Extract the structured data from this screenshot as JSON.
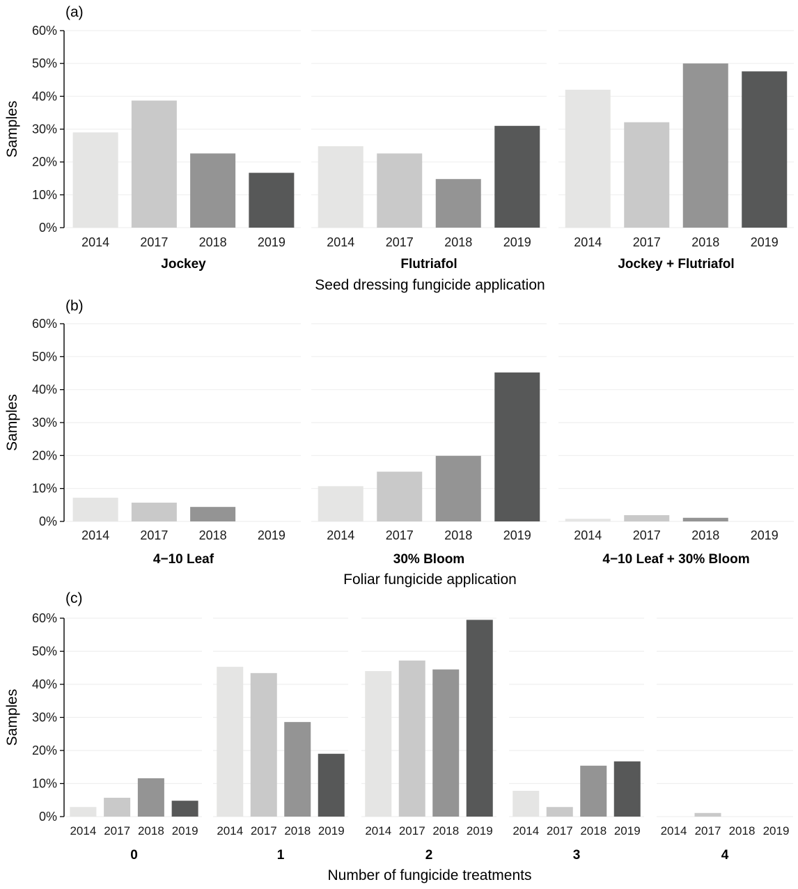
{
  "figure": {
    "category_colors": [
      "#e5e5e4",
      "#c9c9c9",
      "#949494",
      "#575858"
    ],
    "grid_color": "#efefef"
  },
  "chart_data": [
    {
      "type": "bar",
      "panel_tag": "(a)",
      "ylabel": "Samples",
      "xlabel": "Seed dressing fungicide application",
      "ylim": [
        0,
        60
      ],
      "yticks": [
        "0%",
        "10%",
        "20%",
        "30%",
        "40%",
        "50%",
        "60%"
      ],
      "grid": true,
      "categories": [
        "2014",
        "2017",
        "2018",
        "2019"
      ],
      "facets": [
        {
          "label": "Jockey",
          "values": [
            29,
            38.7,
            22.6,
            16.7
          ]
        },
        {
          "label": "Flutriafol",
          "values": [
            24.8,
            22.6,
            14.8,
            31
          ]
        },
        {
          "label": "Jockey + Flutriafol",
          "values": [
            42,
            32.1,
            50,
            47.6
          ]
        }
      ]
    },
    {
      "type": "bar",
      "panel_tag": "(b)",
      "ylabel": "Samples",
      "xlabel": "Foliar fungicide application",
      "ylim": [
        0,
        60
      ],
      "yticks": [
        "0%",
        "10%",
        "20%",
        "30%",
        "40%",
        "50%",
        "60%"
      ],
      "grid": true,
      "categories": [
        "2014",
        "2017",
        "2018",
        "2019"
      ],
      "facets": [
        {
          "label": "4−10 Leaf",
          "values": [
            7.2,
            5.7,
            4.4,
            0
          ]
        },
        {
          "label": "30% Bloom",
          "values": [
            10.7,
            15.1,
            19.9,
            45.2
          ]
        },
        {
          "label": "4−10 Leaf + 30% Bloom",
          "values": [
            0.8,
            1.9,
            1.1,
            0
          ]
        }
      ]
    },
    {
      "type": "bar",
      "panel_tag": "(c)",
      "ylabel": "Samples",
      "xlabel": "Number of fungicide treatments",
      "ylim": [
        0,
        60
      ],
      "yticks": [
        "0%",
        "10%",
        "20%",
        "30%",
        "40%",
        "50%",
        "60%"
      ],
      "grid": true,
      "categories": [
        "2014",
        "2017",
        "2018",
        "2019"
      ],
      "facets": [
        {
          "label": "0",
          "values": [
            2.9,
            5.7,
            11.6,
            4.8
          ]
        },
        {
          "label": "1",
          "values": [
            45.3,
            43.4,
            28.6,
            19
          ]
        },
        {
          "label": "2",
          "values": [
            44,
            47.2,
            44.5,
            59.5
          ]
        },
        {
          "label": "3",
          "values": [
            7.8,
            2.9,
            15.4,
            16.7
          ]
        },
        {
          "label": "4",
          "values": [
            0,
            1.1,
            0,
            0
          ]
        }
      ]
    }
  ]
}
